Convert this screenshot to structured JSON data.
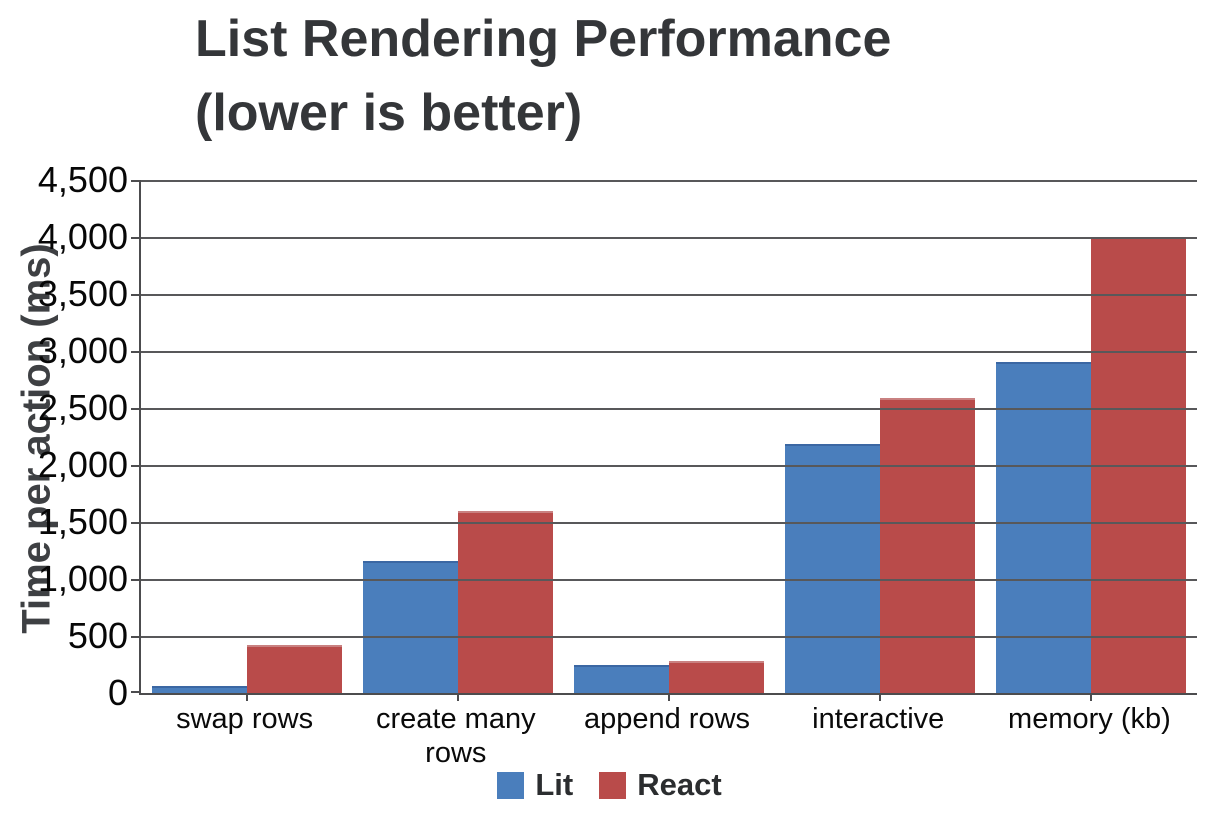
{
  "chart_data": {
    "type": "bar",
    "title": "List Rendering Performance (lower is better)",
    "title_lines": [
      "List Rendering Performance",
      "(lower is better)"
    ],
    "ylabel": "Time per action (ms)",
    "xlabel": "",
    "categories": [
      "swap rows",
      "create many rows",
      "append rows",
      "interactive",
      "memory (kb)"
    ],
    "series": [
      {
        "name": "Lit",
        "color": "#4a7ebc",
        "values": [
          60,
          1160,
          250,
          2180,
          2900
        ]
      },
      {
        "name": "React",
        "color": "#b94b4a",
        "values": [
          420,
          1600,
          285,
          2585,
          4000
        ]
      }
    ],
    "ylim": [
      0,
      4500
    ],
    "ytick_step": 500,
    "yticks": [
      0,
      500,
      1000,
      1500,
      2000,
      2500,
      3000,
      3500,
      4000,
      4500
    ],
    "ytick_labels": [
      "0",
      "500",
      "1,000",
      "1,500",
      "2,000",
      "2,500",
      "3,000",
      "3,500",
      "4,000",
      "4,500"
    ],
    "grid": true,
    "legend_position": "bottom"
  }
}
